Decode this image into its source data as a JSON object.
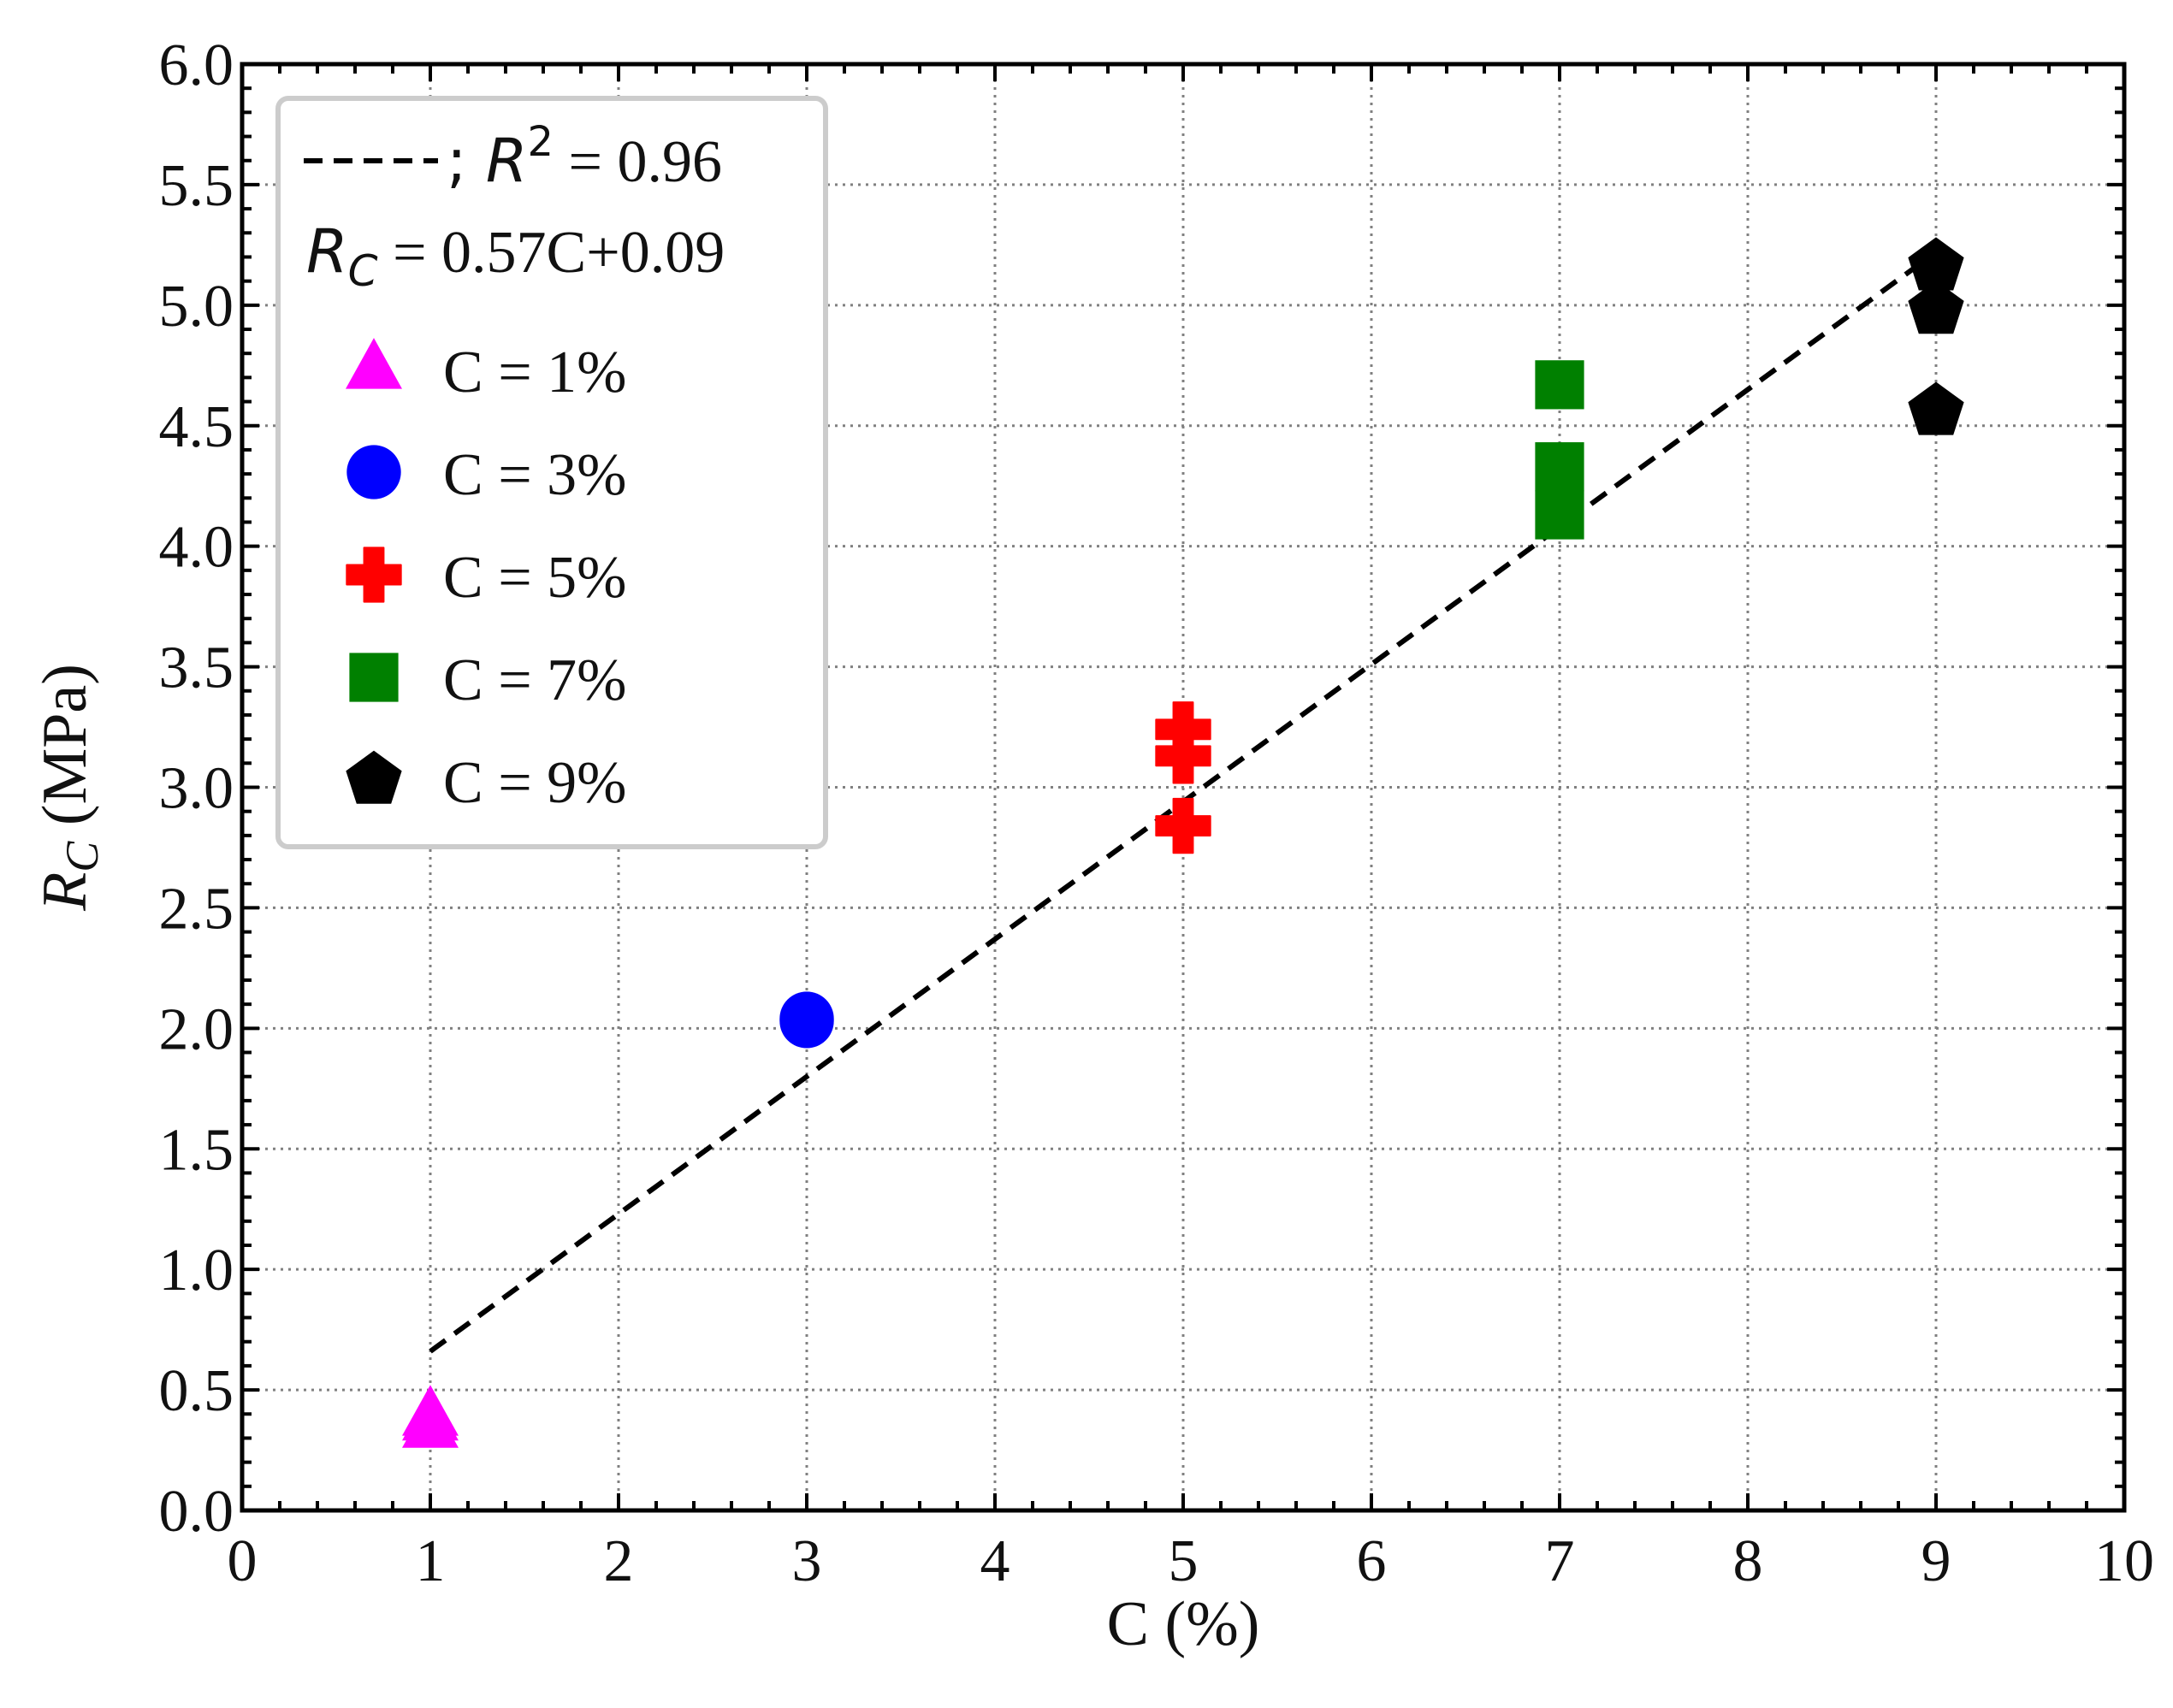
{
  "chart_data": {
    "type": "scatter",
    "title": "",
    "xlabel": "C (%)",
    "ylabel_main": "R",
    "ylabel_sub": "C",
    "ylabel_unit": " (MPa)",
    "xlim": [
      0,
      10
    ],
    "ylim": [
      0.0,
      6.0
    ],
    "xticks": [
      0,
      1,
      2,
      3,
      4,
      5,
      6,
      7,
      8,
      9,
      10
    ],
    "xtick_labels": [
      "0",
      "1",
      "2",
      "3",
      "4",
      "5",
      "6",
      "7",
      "8",
      "9",
      "10"
    ],
    "yticks": [
      0.0,
      0.5,
      1.0,
      1.5,
      2.0,
      2.5,
      3.0,
      3.5,
      4.0,
      4.5,
      5.0,
      5.5,
      6.0
    ],
    "ytick_labels": [
      "0.0",
      "0.5",
      "1.0",
      "1.5",
      "2.0",
      "2.5",
      "3.0",
      "3.5",
      "4.0",
      "4.5",
      "5.0",
      "5.5",
      "6.0"
    ],
    "grid": true,
    "legend_position": "top-left",
    "fit": {
      "label_sep": "; ",
      "r2_symbol": "R",
      "r2_exp": "2",
      "r2_value": " = 0.96",
      "eq_symbol": "R",
      "eq_sub": "C",
      "eq_text": " = 0.57C+0.09",
      "slope": 0.57,
      "intercept": 0.09,
      "x_range": [
        1,
        9
      ],
      "color": "#000000",
      "style": "dashed"
    },
    "series": [
      {
        "name": "C = 1%",
        "marker": "triangle",
        "color": "#ff00ff",
        "points": [
          {
            "x": 1,
            "y": 0.34
          },
          {
            "x": 1,
            "y": 0.37
          },
          {
            "x": 1,
            "y": 0.39
          }
        ]
      },
      {
        "name": "C = 3%",
        "marker": "circle",
        "color": "#0000ff",
        "points": [
          {
            "x": 3,
            "y": 2.03
          },
          {
            "x": 3,
            "y": 2.04
          }
        ]
      },
      {
        "name": "C = 5%",
        "marker": "plus",
        "color": "#ff0000",
        "points": [
          {
            "x": 5,
            "y": 3.24
          },
          {
            "x": 5,
            "y": 3.13
          },
          {
            "x": 5,
            "y": 2.84
          }
        ]
      },
      {
        "name": "C = 7%",
        "marker": "square",
        "color": "#008000",
        "points": [
          {
            "x": 7,
            "y": 4.67
          },
          {
            "x": 7,
            "y": 4.33
          },
          {
            "x": 7,
            "y": 4.13
          }
        ]
      },
      {
        "name": "C = 9%",
        "marker": "pentagon",
        "color": "#000000",
        "points": [
          {
            "x": 9,
            "y": 5.16
          },
          {
            "x": 9,
            "y": 4.98
          },
          {
            "x": 9,
            "y": 4.56
          }
        ]
      }
    ]
  }
}
